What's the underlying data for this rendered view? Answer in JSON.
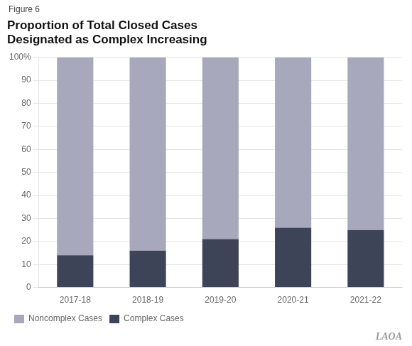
{
  "chart_data": {
    "type": "bar",
    "title": [
      "Proportion of Total Closed Cases",
      "Designated as Complex Increasing"
    ],
    "annotations": [
      "Figure 6",
      "LAOA"
    ],
    "categories": [
      "2017-18",
      "2018-19",
      "2019-20",
      "2020-21",
      "2021-22"
    ],
    "series": [
      {
        "name": "Complex Cases",
        "color": "#3d4457",
        "values": [
          14,
          16,
          21,
          26,
          25
        ]
      },
      {
        "name": "Noncomplex Cases",
        "color": "#a8a8bc",
        "values": [
          86,
          84,
          79,
          74,
          75
        ]
      }
    ],
    "stacked": true,
    "ylim": [
      0,
      100
    ],
    "yticks": [
      0,
      10,
      20,
      30,
      40,
      50,
      60,
      70,
      80,
      90,
      {
        "value": 100,
        "label": "100%"
      }
    ],
    "grid": true,
    "legend": "bottom"
  }
}
